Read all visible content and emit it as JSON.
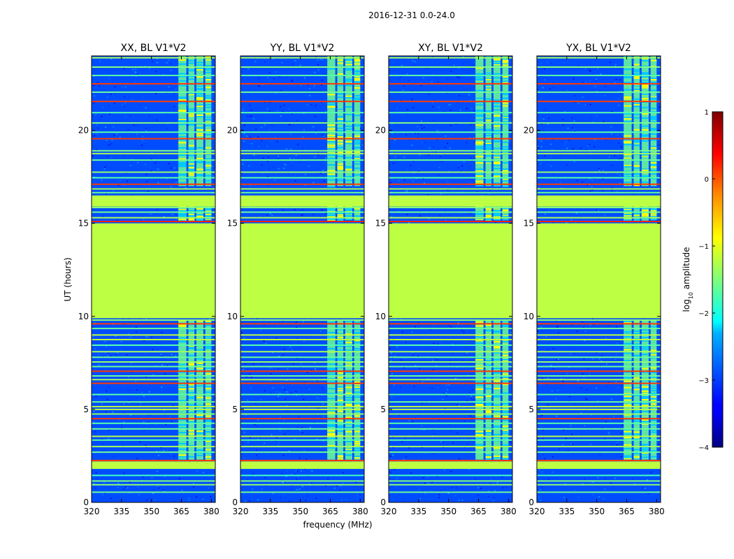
{
  "figure_title": "2016-12-31 0.0-24.0",
  "chart_data": {
    "type": "heatmap",
    "xlabel": "frequency (MHz)",
    "ylabel": "UT (hours)",
    "xlim": [
      320,
      382
    ],
    "ylim": [
      0,
      24
    ],
    "xticks": [
      320,
      335,
      350,
      365,
      380
    ],
    "yticks": [
      0,
      5,
      10,
      15,
      20
    ],
    "panels": [
      {
        "title": "XX, BL V1*V2"
      },
      {
        "title": "YY, BL V1*V2"
      },
      {
        "title": "XY, BL V1*V2"
      },
      {
        "title": "YX, BL V1*V2"
      }
    ],
    "colorbar": {
      "label_prefix": "log",
      "label_sub": "10",
      "label_suffix": " amplitude",
      "min": -4,
      "max": 1,
      "ticks": [
        -4,
        -3,
        -2,
        -1,
        0,
        1
      ],
      "colormap": "jet"
    },
    "background_level": -3.0,
    "saturated_bands": [
      {
        "y0": 9.9,
        "y1": 15.0,
        "level": -1.2
      },
      {
        "y0": 15.9,
        "y1": 16.5,
        "level": -1.2
      },
      {
        "y0": 1.8,
        "y1": 2.2,
        "level": -1.2
      }
    ],
    "rfi_lines": [
      {
        "y": 0.55,
        "level": -1.6
      },
      {
        "y": 0.95,
        "level": -1.4
      },
      {
        "y": 1.15,
        "level": -1.5
      },
      {
        "y": 1.45,
        "level": -1.8
      },
      {
        "y": 2.25,
        "level": 0.1
      },
      {
        "y": 2.7,
        "level": -1.6
      },
      {
        "y": 3.0,
        "level": -1.3
      },
      {
        "y": 3.35,
        "level": -1.7
      },
      {
        "y": 3.55,
        "level": -1.2
      },
      {
        "y": 3.95,
        "level": -1.6
      },
      {
        "y": 4.25,
        "level": -1.7
      },
      {
        "y": 4.5,
        "level": 0.1
      },
      {
        "y": 4.75,
        "level": -1.4
      },
      {
        "y": 5.0,
        "level": -1.2
      },
      {
        "y": 5.15,
        "level": -1.2
      },
      {
        "y": 5.4,
        "level": -1.6
      },
      {
        "y": 5.8,
        "level": -1.7
      },
      {
        "y": 6.4,
        "level": 0.1
      },
      {
        "y": 6.6,
        "level": -1.3
      },
      {
        "y": 6.8,
        "level": -1.6
      },
      {
        "y": 7.05,
        "level": 0.1
      },
      {
        "y": 7.3,
        "level": -1.6
      },
      {
        "y": 7.55,
        "level": -1.4
      },
      {
        "y": 7.8,
        "level": -1.6
      },
      {
        "y": 8.1,
        "level": -1.3
      },
      {
        "y": 8.45,
        "level": -1.7
      },
      {
        "y": 8.75,
        "level": -1.2
      },
      {
        "y": 9.0,
        "level": -1.2
      },
      {
        "y": 9.35,
        "level": -1.6
      },
      {
        "y": 9.6,
        "level": 0.1
      },
      {
        "y": 9.8,
        "level": -1.4
      },
      {
        "y": 15.1,
        "level": 0.2
      },
      {
        "y": 15.3,
        "level": -1.3
      },
      {
        "y": 15.6,
        "level": -1.6
      },
      {
        "y": 15.85,
        "level": -1.5
      },
      {
        "y": 16.65,
        "level": -1.6
      },
      {
        "y": 16.85,
        "level": -1.3
      },
      {
        "y": 17.1,
        "level": 0.1
      },
      {
        "y": 17.45,
        "level": -1.7
      },
      {
        "y": 17.75,
        "level": -1.4
      },
      {
        "y": 18.4,
        "level": -1.6
      },
      {
        "y": 18.75,
        "level": -1.3
      },
      {
        "y": 18.9,
        "level": -1.5
      },
      {
        "y": 19.55,
        "level": 0.1
      },
      {
        "y": 19.9,
        "level": -1.7
      },
      {
        "y": 20.4,
        "level": -1.5
      },
      {
        "y": 20.95,
        "level": -1.7
      },
      {
        "y": 21.55,
        "level": 0.1
      },
      {
        "y": 22.05,
        "level": -1.6
      },
      {
        "y": 22.5,
        "level": 0.1
      },
      {
        "y": 22.95,
        "level": -1.7
      },
      {
        "y": 23.4,
        "level": -1.5
      },
      {
        "y": 23.9,
        "level": -1.3
      }
    ],
    "rfi_channel_blocks": [
      {
        "f0": 363.5,
        "f1": 367.5
      },
      {
        "f0": 368.5,
        "f1": 371.5
      },
      {
        "f0": 372.5,
        "f1": 376.0
      },
      {
        "f0": 377.0,
        "f1": 380.0
      }
    ],
    "block_level": -1.6,
    "block_hot_level": -0.9,
    "block_active_ranges": [
      [
        2.3,
        9.8
      ],
      [
        15.2,
        16.0
      ],
      [
        17.0,
        24.0
      ]
    ]
  }
}
